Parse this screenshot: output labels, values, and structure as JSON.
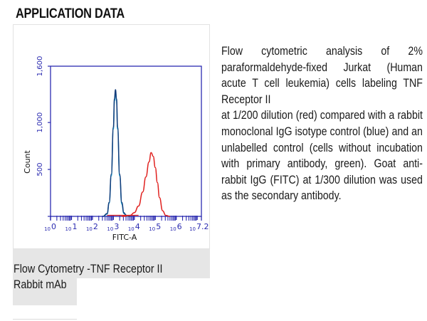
{
  "section": {
    "title": "APPLICATION DATA"
  },
  "figure": {
    "caption_line1": "Flow Cytometry -TNF Receptor II",
    "caption_line2": "Rabbit mAb"
  },
  "description": {
    "text": "Flow cytometric analysis of 2% paraformaldehyde-fixed Jurkat (Human acute T cell leukemia) cells labeling TNF Receptor II",
    "text2": "at 1/200 dilution (red) compared with a rabbit monoclonal IgG isotype control (blue) and an unlabelled control (cells without incubation with primary antibody, green). Goat anti-rabbit IgG (FITC) at 1/300 dilution was used as the secondary antibody."
  },
  "colors": {
    "axis": "#2b2bb0",
    "red_series": "#e0201e",
    "blue_series": "#143c7a",
    "cyan_series": "#1aa6d6",
    "caption_bg": "#e6e6e6"
  },
  "chart_data": {
    "type": "line",
    "title": "",
    "xlabel": "FITC-A",
    "ylabel": "Count",
    "xscale": "log10",
    "xlim": [
      0,
      7.2
    ],
    "ylim": [
      0,
      1600
    ],
    "x_tick_labels": [
      "10^0",
      "10^1",
      "10^2",
      "10^3",
      "10^4",
      "10^5",
      "10^6",
      "10^7.2"
    ],
    "y_tick_labels": [
      "500",
      "1,000",
      "1,600"
    ],
    "y_ticks": [
      500,
      1000,
      1600
    ],
    "grid": false,
    "legend": "none (colors described in text)",
    "series": [
      {
        "name": "Isotype control (blue)",
        "color": "#143c7a",
        "x_log": [
          2.5,
          2.7,
          2.8,
          2.9,
          3.0,
          3.05,
          3.1,
          3.15,
          3.2,
          3.3,
          3.4,
          3.5,
          3.6,
          3.8
        ],
        "y": [
          0,
          30,
          150,
          450,
          950,
          1250,
          1350,
          1250,
          950,
          450,
          150,
          40,
          10,
          0
        ]
      },
      {
        "name": "Unlabelled control (green/cyan)",
        "color": "#1aa6d6",
        "x_log": [
          2.5,
          2.7,
          2.8,
          2.9,
          3.0,
          3.05,
          3.1,
          3.15,
          3.2,
          3.3,
          3.4,
          3.5,
          3.7
        ],
        "y": [
          0,
          25,
          140,
          430,
          930,
          1230,
          1330,
          1230,
          930,
          430,
          130,
          30,
          0
        ]
      },
      {
        "name": "TNF Receptor II 1/200 (red)",
        "color": "#e0201e",
        "x_log": [
          3.4,
          3.8,
          4.0,
          4.2,
          4.4,
          4.55,
          4.7,
          4.8,
          4.9,
          5.0,
          5.1,
          5.2,
          5.35,
          5.5,
          5.7
        ],
        "y": [
          0,
          10,
          40,
          110,
          260,
          420,
          580,
          680,
          640,
          520,
          360,
          200,
          60,
          10,
          0
        ]
      }
    ]
  }
}
